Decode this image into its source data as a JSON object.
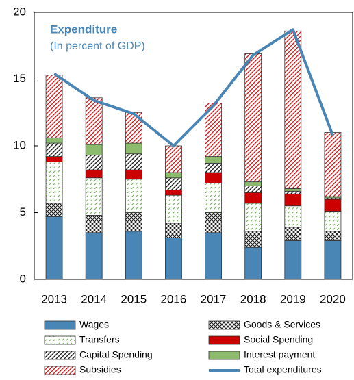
{
  "chart_data": {
    "type": "stacked-bar-line",
    "title": "Expenditure",
    "subtitle": "(In percent of GDP)",
    "categories": [
      "2013",
      "2014",
      "2015",
      "2016",
      "2017",
      "2018",
      "2019",
      "2020"
    ],
    "ylim": [
      0,
      20
    ],
    "yticks": [
      0,
      5,
      10,
      15,
      20
    ],
    "series": [
      {
        "name": "Wages",
        "color": "#4a86b5",
        "hatch": "solid",
        "values": [
          4.7,
          3.5,
          3.6,
          3.1,
          3.5,
          2.4,
          2.9,
          2.9
        ]
      },
      {
        "name": "Goods & Services",
        "color": "#222222",
        "hatch": "cross",
        "values": [
          1.0,
          1.3,
          1.4,
          1.1,
          1.5,
          1.2,
          1.0,
          0.7
        ]
      },
      {
        "name": "Transfers",
        "color": "#7fb56a",
        "hatch": "dash",
        "values": [
          3.1,
          2.8,
          2.5,
          2.1,
          2.2,
          2.1,
          1.6,
          1.5
        ]
      },
      {
        "name": "Social Spending",
        "color": "#cc0000",
        "hatch": "solid",
        "values": [
          0.4,
          0.6,
          0.7,
          0.4,
          0.8,
          0.8,
          0.9,
          0.9
        ]
      },
      {
        "name": "Capital Spending",
        "color": "#222222",
        "hatch": "diag",
        "values": [
          1.0,
          1.1,
          1.2,
          0.9,
          0.7,
          0.5,
          0.2,
          0.1
        ]
      },
      {
        "name": "Interest payment",
        "color": "#8dbb6e",
        "hatch": "solid",
        "values": [
          0.4,
          0.8,
          0.8,
          0.4,
          0.5,
          0.3,
          0.2,
          0.1
        ]
      },
      {
        "name": "Subsidies",
        "color": "#cc2222",
        "hatch": "diag",
        "values": [
          4.7,
          3.5,
          2.3,
          2.0,
          4.0,
          9.6,
          11.8,
          4.8
        ]
      }
    ],
    "line": {
      "name": "Total expenditures",
      "color": "#4a86b5",
      "values": [
        15.4,
        13.4,
        12.4,
        10.0,
        13.0,
        16.8,
        18.7,
        10.8
      ]
    }
  }
}
